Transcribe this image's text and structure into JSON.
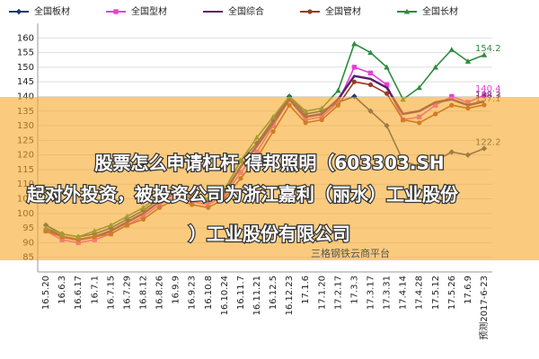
{
  "chart_data": {
    "type": "line",
    "categories": [
      "16.5.20",
      "16.6.3",
      "16.6.17",
      "16.7.1",
      "16.7.15",
      "16.7.29",
      "16.8.12",
      "16.8.26",
      "16.9.9",
      "16.9.23",
      "16.10.8",
      "16.10.24",
      "16.11.7",
      "16.11.21",
      "16.12.5",
      "16.12.23",
      "17.1.6",
      "17.1.20",
      "17.2.17",
      "17.3.3",
      "17.3.17",
      "17.3.31",
      "17.4.14",
      "17.4.28",
      "17.5.12",
      "17.5.26",
      "17.6.9",
      "预测2017-6-23"
    ],
    "series": [
      {
        "name": "全国板材",
        "color": "#1f3a6e",
        "marker": "diamond",
        "values": [
          96,
          93,
          92,
          93,
          95,
          98,
          101,
          105,
          108,
          106,
          104,
          108,
          118,
          124,
          132,
          140,
          134,
          135,
          138,
          140,
          135,
          130,
          118,
          116,
          118,
          121,
          120,
          122.2
        ]
      },
      {
        "name": "全国型材",
        "color": "#e83fd8",
        "marker": "square",
        "values": [
          94,
          91,
          90,
          91,
          93,
          96,
          99,
          103,
          106,
          104,
          103,
          106,
          114,
          121,
          130,
          139,
          132,
          133,
          138,
          150,
          148,
          144,
          132,
          133,
          137,
          140,
          138,
          140.4
        ]
      },
      {
        "name": "全国综合",
        "color": "#5b1f6e",
        "marker": "none",
        "values": [
          95,
          92,
          91,
          92,
          94,
          97,
          100,
          104,
          107,
          105,
          104,
          107,
          116,
          123,
          131,
          139,
          133,
          134,
          139,
          147,
          146,
          143,
          134,
          135,
          138,
          139,
          137,
          138.3
        ]
      },
      {
        "name": "全国管材",
        "color": "#9b3a1e",
        "marker": "circle",
        "values": [
          94,
          92,
          91,
          92,
          93,
          96,
          98,
          102,
          105,
          103,
          102,
          105,
          112,
          119,
          128,
          137,
          131,
          132,
          137,
          145,
          144,
          141,
          132,
          131,
          134,
          137,
          136,
          137.1
        ]
      },
      {
        "name": "全国长材",
        "color": "#2e8b3e",
        "marker": "triangle",
        "values": [
          95,
          93,
          92,
          94,
          96,
          99,
          102,
          106,
          109,
          107,
          105,
          108,
          118,
          126,
          133,
          140,
          135,
          136,
          142,
          158,
          155,
          150,
          139,
          143,
          150,
          156,
          152,
          154.2
        ]
      }
    ],
    "ylim": [
      80,
      165
    ],
    "yticks": [
      85,
      90,
      95,
      100,
      105,
      110,
      115,
      120,
      125,
      130,
      135,
      140,
      145,
      150,
      155,
      160
    ],
    "grid": true,
    "overlay": [
      "股票怎么申请杠杆 得邦照明（603303.SH",
      "起对外投资，被投资公司为浙江嘉利（丽水）工业股份",
      "）工业股份有限公司"
    ],
    "watermark": "三格钢铁云商平台"
  }
}
